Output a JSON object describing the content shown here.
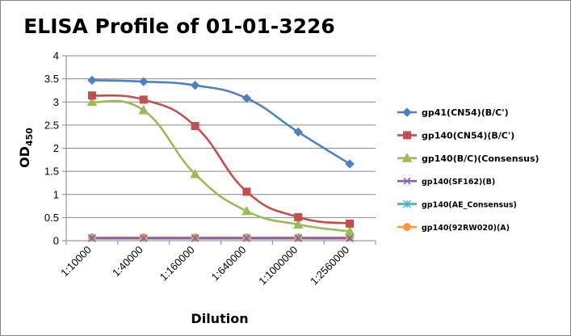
{
  "chart_data": {
    "type": "line",
    "title": "ELISA Profile of 01-01-3226",
    "xlabel": "Dilution",
    "ylabel": "OD",
    "ylabel_sub": "450",
    "categories": [
      "1:10000",
      "1:40000",
      "1:160000",
      "1:640000",
      "1:1000000",
      "1:2560000"
    ],
    "ylim": [
      0,
      4
    ],
    "yticks": [
      "0",
      "0.5",
      "1",
      "1.5",
      "2",
      "2.5",
      "3",
      "3.5",
      "4"
    ],
    "grid": true,
    "legend_position": "right",
    "series": [
      {
        "name": "gp41(CN54)(B/C')",
        "values": [
          3.47,
          3.44,
          3.36,
          3.08,
          2.35,
          1.66
        ],
        "color": "#4F81BD",
        "marker": "diamond"
      },
      {
        "name": "gp140(CN54)(B/C')",
        "values": [
          3.14,
          3.05,
          2.48,
          1.06,
          0.51,
          0.37
        ],
        "color": "#C0504D",
        "marker": "square"
      },
      {
        "name": "gp140(B/C)(Consensus)",
        "values": [
          3.0,
          2.82,
          1.44,
          0.64,
          0.35,
          0.2
        ],
        "color": "#9BBB59",
        "marker": "triangle"
      },
      {
        "name": "gp140(SF162)(B)",
        "values": [
          0.05,
          0.05,
          0.05,
          0.05,
          0.05,
          0.05
        ],
        "color": "#8064A2",
        "marker": "x"
      },
      {
        "name": "gp140(AE_Consensus)",
        "values": [
          0.06,
          0.06,
          0.06,
          0.06,
          0.06,
          0.06
        ],
        "color": "#4BACC6",
        "marker": "star"
      },
      {
        "name": "gp140(92RW020)(A)",
        "values": [
          0.07,
          0.07,
          0.07,
          0.07,
          0.07,
          0.07
        ],
        "color": "#F79646",
        "marker": "circle"
      }
    ]
  }
}
